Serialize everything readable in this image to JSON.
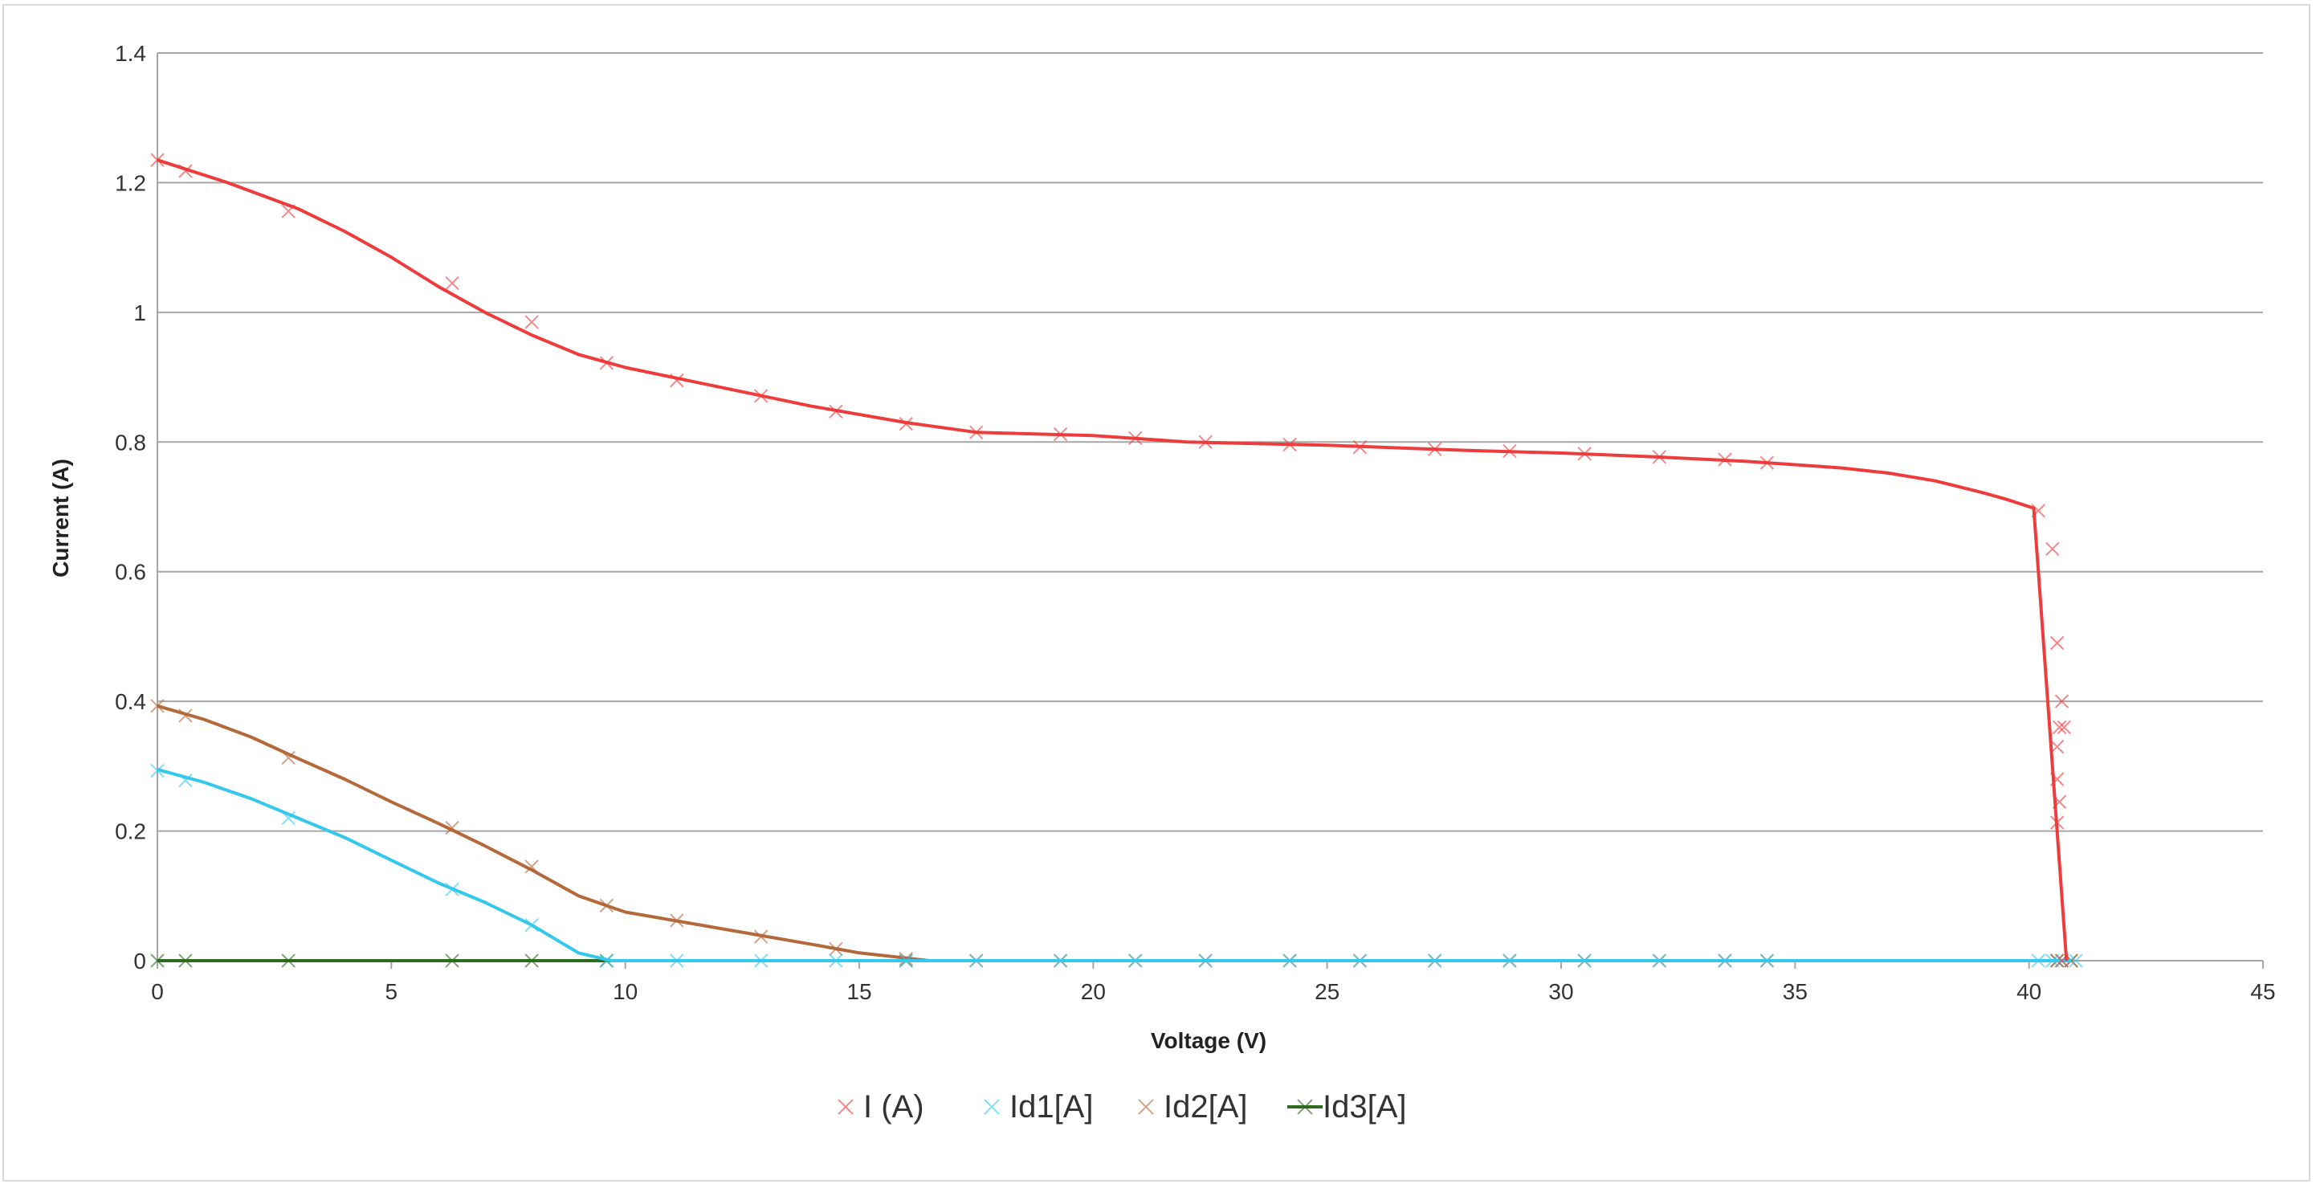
{
  "chart_data": {
    "type": "line",
    "title": "",
    "xlabel": "Voltage (V)",
    "ylabel": "Current (A)",
    "xlim": [
      0,
      45
    ],
    "ylim": [
      0,
      1.4
    ],
    "xticks": [
      "0",
      "5",
      "10",
      "15",
      "20",
      "25",
      "30",
      "35",
      "40",
      "45"
    ],
    "yticks": [
      "0",
      "0.2",
      "0.4",
      "0.6",
      "0.8",
      "1",
      "1.2",
      "1.4"
    ],
    "grid": "horizontal",
    "legend_position": "bottom",
    "series": [
      {
        "name": "I (A)",
        "color": "#ee3b3b",
        "marker": "x",
        "line": [
          [
            0,
            1.235
          ],
          [
            1.5,
            1.2
          ],
          [
            3,
            1.16
          ],
          [
            4,
            1.125
          ],
          [
            5,
            1.085
          ],
          [
            6,
            1.04
          ],
          [
            7,
            1.0
          ],
          [
            8,
            0.965
          ],
          [
            9,
            0.935
          ],
          [
            10,
            0.915
          ],
          [
            12,
            0.885
          ],
          [
            14,
            0.855
          ],
          [
            16,
            0.83
          ],
          [
            17.5,
            0.815
          ],
          [
            20,
            0.81
          ],
          [
            22,
            0.8
          ],
          [
            25,
            0.795
          ],
          [
            28,
            0.787
          ],
          [
            30,
            0.783
          ],
          [
            32,
            0.777
          ],
          [
            34,
            0.77
          ],
          [
            36,
            0.76
          ],
          [
            37,
            0.752
          ],
          [
            38,
            0.74
          ],
          [
            39,
            0.722
          ],
          [
            39.5,
            0.712
          ],
          [
            40.1,
            0.698
          ],
          [
            40.2,
            0.6
          ],
          [
            40.5,
            0.3
          ],
          [
            40.8,
            0.0
          ]
        ],
        "points": [
          [
            0,
            1.235
          ],
          [
            0.6,
            1.218
          ],
          [
            2.8,
            1.156
          ],
          [
            6.3,
            1.045
          ],
          [
            8,
            0.985
          ],
          [
            9.6,
            0.922
          ],
          [
            11.1,
            0.895
          ],
          [
            12.9,
            0.871
          ],
          [
            14.5,
            0.847
          ],
          [
            16,
            0.828
          ],
          [
            17.5,
            0.815
          ],
          [
            19.3,
            0.812
          ],
          [
            20.9,
            0.806
          ],
          [
            22.4,
            0.8
          ],
          [
            24.2,
            0.796
          ],
          [
            25.7,
            0.792
          ],
          [
            27.3,
            0.789
          ],
          [
            28.9,
            0.786
          ],
          [
            30.5,
            0.782
          ],
          [
            32.1,
            0.777
          ],
          [
            33.5,
            0.773
          ],
          [
            34.4,
            0.768
          ],
          [
            40.2,
            0.694
          ],
          [
            40.5,
            0.635
          ],
          [
            40.6,
            0.49
          ],
          [
            40.7,
            0.4
          ],
          [
            40.65,
            0.36
          ],
          [
            40.75,
            0.36
          ],
          [
            40.6,
            0.33
          ],
          [
            40.6,
            0.28
          ],
          [
            40.65,
            0.245
          ],
          [
            40.6,
            0.213
          ],
          [
            40.7,
            0.0
          ]
        ]
      },
      {
        "name": "Id1[A]",
        "color": "#33c8ec",
        "marker": "x",
        "line": [
          [
            0,
            0.295
          ],
          [
            1,
            0.275
          ],
          [
            2,
            0.25
          ],
          [
            3,
            0.22
          ],
          [
            4,
            0.19
          ],
          [
            5,
            0.155
          ],
          [
            6,
            0.12
          ],
          [
            7,
            0.09
          ],
          [
            8,
            0.055
          ],
          [
            9,
            0.012
          ],
          [
            9.7,
            0.0
          ],
          [
            10,
            0.0
          ],
          [
            40.9,
            0.0
          ]
        ],
        "points": [
          [
            0,
            0.293
          ],
          [
            0.6,
            0.278
          ],
          [
            2.8,
            0.22
          ],
          [
            6.3,
            0.11
          ],
          [
            8,
            0.055
          ],
          [
            9.6,
            0.0
          ],
          [
            11.1,
            0.0
          ],
          [
            12.9,
            0.0
          ],
          [
            14.5,
            0.0
          ],
          [
            16,
            0.0
          ],
          [
            17.5,
            0.0
          ],
          [
            19.3,
            0.0
          ],
          [
            20.9,
            0.0
          ],
          [
            22.4,
            0.0
          ],
          [
            24.2,
            0.0
          ],
          [
            25.7,
            0.0
          ],
          [
            27.3,
            0.0
          ],
          [
            28.9,
            0.0
          ],
          [
            30.5,
            0.0
          ],
          [
            32.1,
            0.0
          ],
          [
            33.5,
            0.0
          ],
          [
            34.4,
            0.0
          ],
          [
            40.2,
            0.0
          ],
          [
            40.5,
            0.0
          ],
          [
            40.7,
            0.0
          ],
          [
            41.0,
            0.0
          ]
        ]
      },
      {
        "name": "Id2[A]",
        "color": "#b5683a",
        "marker": "x",
        "line": [
          [
            0,
            0.393
          ],
          [
            1,
            0.372
          ],
          [
            2,
            0.345
          ],
          [
            3,
            0.312
          ],
          [
            4,
            0.28
          ],
          [
            5,
            0.245
          ],
          [
            6,
            0.212
          ],
          [
            7,
            0.177
          ],
          [
            8,
            0.14
          ],
          [
            9,
            0.1
          ],
          [
            10,
            0.075
          ],
          [
            12,
            0.05
          ],
          [
            14,
            0.025
          ],
          [
            15,
            0.012
          ],
          [
            16.5,
            0.0
          ],
          [
            17,
            0.0
          ],
          [
            40.9,
            0.0
          ]
        ],
        "points": [
          [
            0,
            0.393
          ],
          [
            0.6,
            0.378
          ],
          [
            2.8,
            0.313
          ],
          [
            6.3,
            0.205
          ],
          [
            8,
            0.145
          ],
          [
            9.6,
            0.085
          ],
          [
            11.1,
            0.062
          ],
          [
            12.9,
            0.037
          ],
          [
            14.5,
            0.018
          ],
          [
            16,
            0.003
          ],
          [
            17.5,
            0.0
          ],
          [
            19.3,
            0.0
          ],
          [
            20.9,
            0.0
          ],
          [
            22.4,
            0.0
          ],
          [
            24.2,
            0.0
          ],
          [
            25.7,
            0.0
          ],
          [
            27.3,
            0.0
          ],
          [
            28.9,
            0.0
          ],
          [
            30.5,
            0.0
          ],
          [
            32.1,
            0.0
          ],
          [
            33.5,
            0.0
          ],
          [
            34.4,
            0.0
          ],
          [
            40.6,
            0.0
          ],
          [
            40.9,
            0.0
          ]
        ]
      },
      {
        "name": "Id3[A]",
        "color": "#2e6b1f",
        "marker": "x",
        "line": [
          [
            0,
            0.0
          ],
          [
            9.7,
            0.0
          ]
        ],
        "points": [
          [
            0,
            0.0
          ],
          [
            0.6,
            0.0
          ],
          [
            2.8,
            0.0
          ],
          [
            6.3,
            0.0
          ],
          [
            8,
            0.0
          ],
          [
            9.6,
            0.0
          ],
          [
            16,
            0.0
          ],
          [
            40.6,
            0.0
          ],
          [
            40.9,
            0.0
          ]
        ]
      }
    ]
  }
}
